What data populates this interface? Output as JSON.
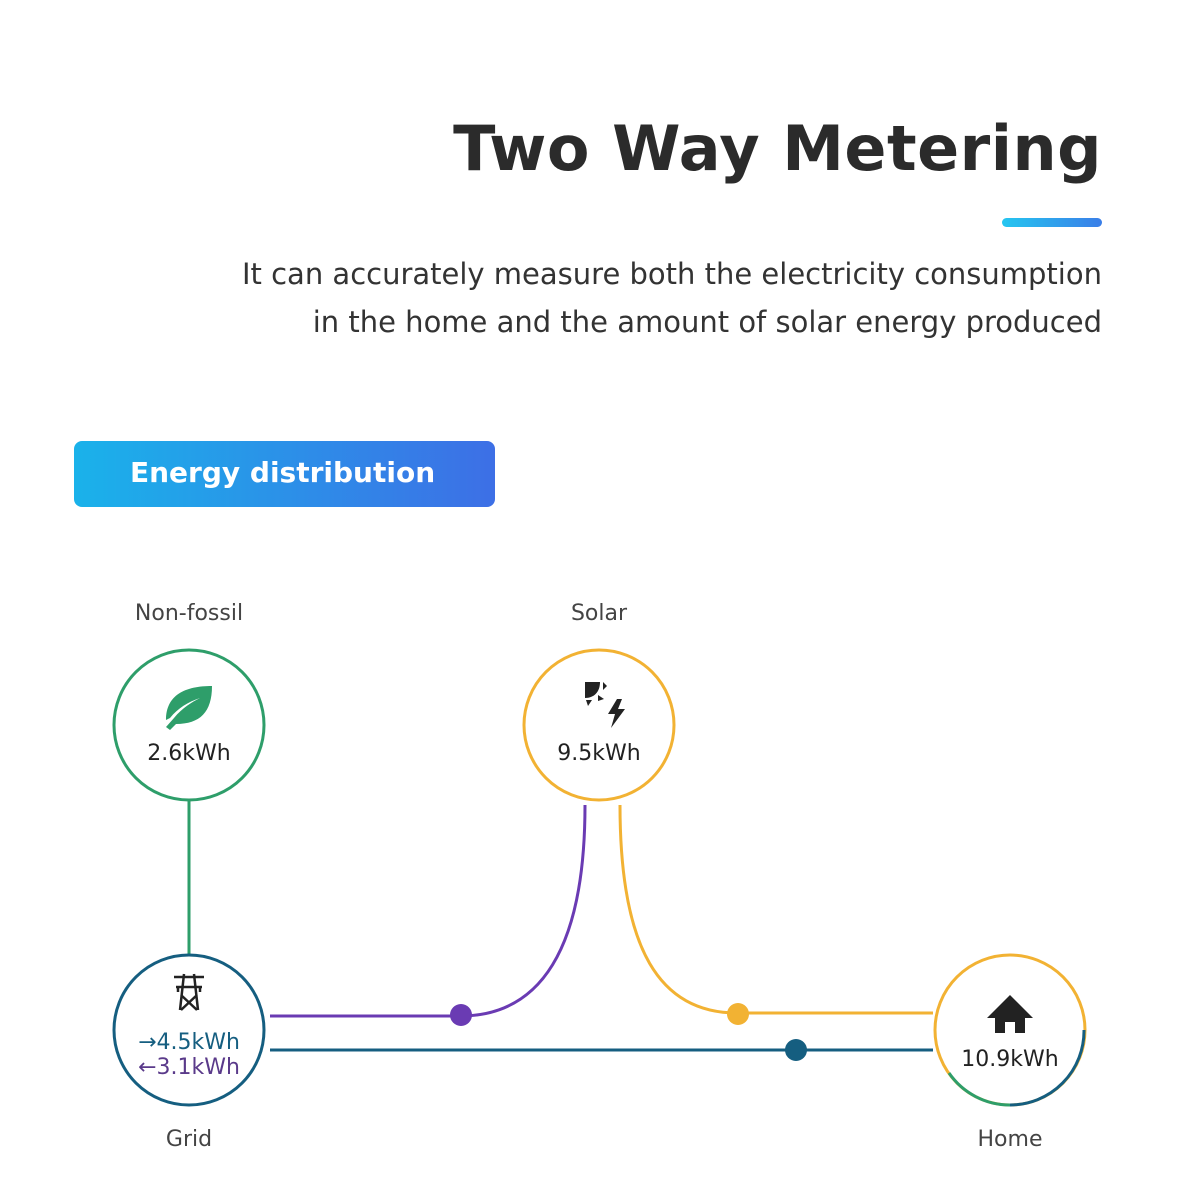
{
  "header": {
    "title": "Two Way Metering",
    "subtitle_line1": "It can accurately measure both the electricity consumption",
    "subtitle_line2": "in the home and the amount of solar energy produced"
  },
  "badge": {
    "label": "Energy distribution"
  },
  "nodes": {
    "nonfossil": {
      "label": "Non-fossil",
      "value": "2.6kWh",
      "icon": "leaf-icon",
      "color": "#2e9e6a"
    },
    "solar": {
      "label": "Solar",
      "value": "9.5kWh",
      "icon": "solar-power-icon",
      "color": "#f2b233"
    },
    "grid": {
      "label": "Grid",
      "import": "→4.5kWh",
      "export": "←3.1kWh",
      "icon": "transmission-tower-icon",
      "color": "#155e80"
    },
    "home": {
      "label": "Home",
      "value": "10.9kWh",
      "icon": "home-icon"
    }
  },
  "flow_colors": {
    "solar_to_grid": "#6a3bb3",
    "solar_to_home": "#f2b233",
    "grid_to_home": "#155e80",
    "nonfossil_to_grid": "#2e9e6a"
  }
}
